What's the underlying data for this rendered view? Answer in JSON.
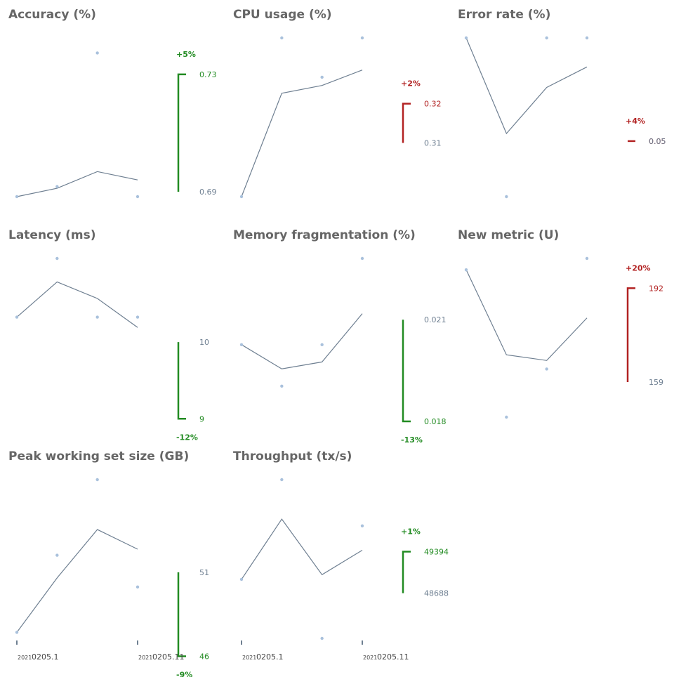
{
  "colors": {
    "title": "#666666",
    "line": "#6e7f91",
    "point": "#a9c1dc",
    "good": "#228b22",
    "bad": "#b22222",
    "neutral": "#6e7f91",
    "axis_tick": "#6e7f91",
    "axis_text": "#444444"
  },
  "x_axis": {
    "year_label": "2021",
    "tick_labels": [
      "0205.1",
      "0205.11"
    ]
  },
  "chart_data": [
    {
      "type": "line",
      "title": "Accuracy (%)",
      "x": [
        0,
        1,
        2,
        3
      ],
      "series": [
        {
          "kind": "line",
          "values": [
            0.69,
            0.6915,
            0.6945,
            0.693
          ]
        },
        {
          "kind": "points",
          "values": [
            0.69,
            0.6918,
            0.7158,
            0.69
          ]
        }
      ],
      "ylim": [
        0.69,
        0.7185
      ],
      "delta": {
        "label": "+5%",
        "start": 0.69,
        "end": 0.73,
        "start_label": "0.69",
        "end_label": "0.73",
        "status": "good",
        "range": [
          0.68,
          0.74
        ]
      }
    },
    {
      "type": "line",
      "title": "CPU usage (%)",
      "x": [
        0,
        1,
        2,
        3
      ],
      "series": [
        {
          "kind": "line",
          "values": [
            0.2975,
            0.3175,
            0.319,
            0.322
          ]
        },
        {
          "kind": "points",
          "values": [
            0.2975,
            0.3282,
            0.3206,
            0.3282
          ]
        }
      ],
      "ylim": [
        0.2975,
        0.3282
      ],
      "delta": {
        "label": "+2%",
        "start": 0.31,
        "end": 0.32,
        "start_label": "0.31",
        "end_label": "0.32",
        "status": "bad",
        "range": [
          0.29,
          0.335
        ]
      }
    },
    {
      "type": "line",
      "title": "Error rate (%)",
      "x": [
        0,
        1,
        2,
        3
      ],
      "series": [
        {
          "kind": "line",
          "values": [
            0.0553,
            0.0497,
            0.0524,
            0.0536
          ]
        },
        {
          "kind": "points",
          "values": [
            0.0553,
            0.046,
            0.0553,
            0.0553
          ]
        }
      ],
      "ylim": [
        0.046,
        0.0553
      ],
      "delta": {
        "label": "+4%",
        "start": 0.05,
        "end": 0.05,
        "start_label": "0.05",
        "end_label": "0.05",
        "status": "bad",
        "range": [
          0.045,
          0.056
        ]
      }
    },
    {
      "type": "line",
      "title": "Latency (ms)",
      "x": [
        0,
        1,
        2,
        3
      ],
      "series": [
        {
          "kind": "line",
          "values": [
            10.15,
            10.66,
            10.42,
            10.0
          ]
        },
        {
          "kind": "points",
          "values": [
            10.15,
            11.0,
            10.15,
            10.15
          ]
        }
      ],
      "ylim": [
        8.7,
        11.0
      ],
      "delta": {
        "label": "-12%",
        "start": 10.0,
        "end": 9.0,
        "start_label": "10",
        "end_label": "9",
        "status": "good",
        "range": [
          8.7,
          11.0
        ]
      }
    },
    {
      "type": "line",
      "title": "Memory fragmentation (%)",
      "x": [
        0,
        1,
        2,
        3
      ],
      "series": [
        {
          "kind": "line",
          "values": [
            0.0201,
            0.0194,
            0.0196,
            0.021
          ]
        },
        {
          "kind": "points",
          "values": [
            0.0201,
            0.0189,
            0.0201,
            0.0226
          ]
        }
      ],
      "ylim": [
        0.018,
        0.0226
      ],
      "delta": {
        "label": "-13%",
        "start": 0.021,
        "end": 0.018,
        "start_label": "0.021",
        "end_label": "0.018",
        "status": "good",
        "range": [
          0.0174,
          0.0226
        ]
      }
    },
    {
      "type": "line",
      "title": "New metric (U)",
      "x": [
        0,
        1,
        2,
        3
      ],
      "series": [
        {
          "kind": "line",
          "values": [
            197,
            167,
            165,
            180
          ]
        },
        {
          "kind": "points",
          "values": [
            197,
            145,
            162,
            201
          ]
        }
      ],
      "ylim": [
        145,
        201
      ],
      "delta": {
        "label": "+20%",
        "start": 159,
        "end": 192,
        "start_label": "159",
        "end_label": "192",
        "status": "bad",
        "range": [
          138,
          200
        ]
      }
    },
    {
      "type": "line",
      "title": "Peak working set size (GB)",
      "x": [
        0,
        1,
        2,
        3
      ],
      "series": [
        {
          "kind": "line",
          "values": [
            46.0,
            49.6,
            52.8,
            51.5
          ]
        },
        {
          "kind": "points",
          "values": [
            46.0,
            51.1,
            56.1,
            49.0
          ]
        }
      ],
      "ylim": [
        45.6,
        56.1
      ],
      "delta": {
        "label": "-9%",
        "start": 51,
        "end": 46,
        "start_label": "51",
        "end_label": "46",
        "status": "good",
        "range": [
          45.6,
          56.1
        ]
      }
    },
    {
      "type": "line",
      "title": "Throughput (tx/s)",
      "x": [
        0,
        1,
        2,
        3
      ],
      "series": [
        {
          "kind": "line",
          "values": [
            48850,
            49404,
            48893,
            49118
          ]
        },
        {
          "kind": "points",
          "values": [
            48850,
            49767,
            48307,
            49342
          ]
        }
      ],
      "ylim": [
        48307,
        49767
      ],
      "delta": {
        "label": "+1%",
        "start": 48688,
        "end": 49394,
        "start_label": "48688",
        "end_label": "49394",
        "status": "good",
        "range": [
          47500,
          50500
        ]
      }
    }
  ]
}
